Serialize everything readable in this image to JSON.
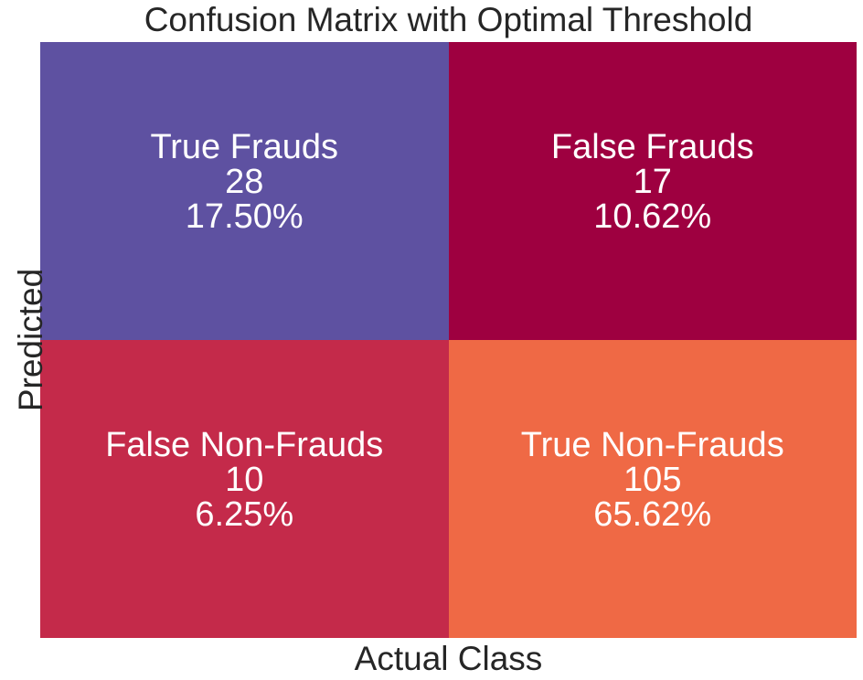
{
  "chart_data": {
    "type": "heatmap",
    "title": "Confusion Matrix with Optimal Threshold",
    "xlabel": "Actual Class",
    "ylabel": "Predicted",
    "legend": "none",
    "grid": false,
    "cells": [
      {
        "row": 0,
        "col": 0,
        "label": "True Frauds",
        "count": "28",
        "percent": "17.50%",
        "color": "#5e51a1"
      },
      {
        "row": 0,
        "col": 1,
        "label": "False Frauds",
        "count": "17",
        "percent": "10.62%",
        "color": "#9e0040"
      },
      {
        "row": 1,
        "col": 0,
        "label": "False Non-Frauds",
        "count": "10",
        "percent": "6.25%",
        "color": "#c42a4a"
      },
      {
        "row": 1,
        "col": 1,
        "label": "True Non-Frauds",
        "count": "105",
        "percent": "65.62%",
        "color": "#ef6945"
      }
    ]
  }
}
